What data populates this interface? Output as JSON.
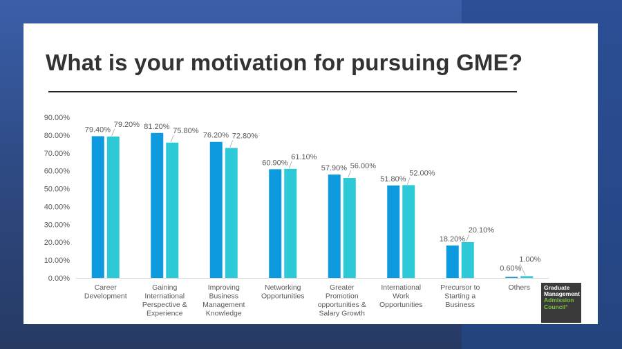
{
  "slide": {
    "title": "What is your motivation for pursuing GME?"
  },
  "logo": {
    "line1": "Graduate",
    "line2": "Management",
    "line3": "Admission",
    "line4": "Council°"
  },
  "colors": {
    "series1": "#0e9ade",
    "series2": "#2ec9d6",
    "axis_text": "#595959",
    "title": "#333333"
  },
  "chart_data": {
    "type": "bar",
    "title": "",
    "xlabel": "",
    "ylabel": "",
    "ylim": [
      0,
      90
    ],
    "y_ticks": [
      "0.00%",
      "10.00%",
      "20.00%",
      "30.00%",
      "40.00%",
      "50.00%",
      "60.00%",
      "70.00%",
      "80.00%",
      "90.00%"
    ],
    "grid": false,
    "legend": "none",
    "categories": [
      [
        "Career",
        "Development"
      ],
      [
        "Gaining",
        "International",
        "Perspective &",
        "Experience"
      ],
      [
        "Improving",
        "Business",
        "Management",
        "Knowledge"
      ],
      [
        "Networking",
        "Opportunities"
      ],
      [
        "Greater",
        "Promotion",
        "opportunities &",
        "Salary Growth"
      ],
      [
        "International",
        "Work",
        "Opportunities"
      ],
      [
        "Precursor to",
        "Starting a",
        "Business"
      ],
      [
        "Others"
      ]
    ],
    "series": [
      {
        "values": [
          79.4,
          81.2,
          76.2,
          60.9,
          57.9,
          51.8,
          18.2,
          0.6
        ],
        "labels": [
          "79.40%",
          "81.20%",
          "76.20%",
          "60.90%",
          "57.90%",
          "51.80%",
          "18.20%",
          "0.60%"
        ]
      },
      {
        "values": [
          79.2,
          75.8,
          72.8,
          61.1,
          56.0,
          52.0,
          20.1,
          1.0
        ],
        "labels": [
          "79.20%",
          "75.80%",
          "72.80%",
          "61.10%",
          "56.00%",
          "52.00%",
          "20.10%",
          "1.00%"
        ]
      }
    ]
  }
}
